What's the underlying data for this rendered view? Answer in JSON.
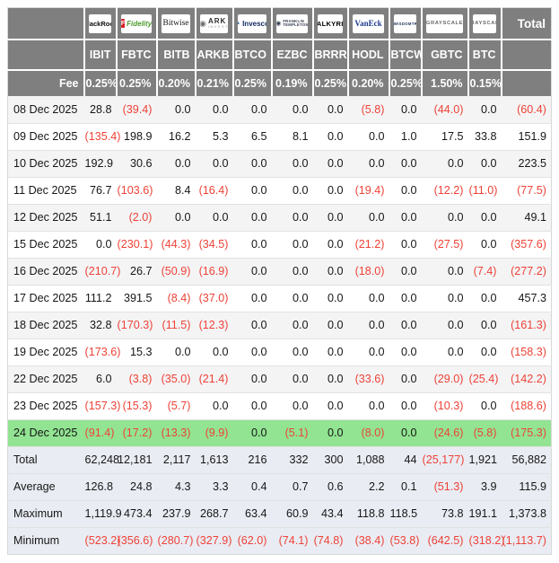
{
  "chart_data": {
    "type": "table",
    "total_label": "Total",
    "fee_label": "Fee",
    "providers": [
      {
        "key": "blackrock",
        "text": "BlackRock"
      },
      {
        "key": "fidelity",
        "text": "Fidelity",
        "icon": "F"
      },
      {
        "key": "bitwise",
        "text": "Bitwise"
      },
      {
        "key": "ark-invest",
        "text": "ARK",
        "subtext": "INVEST",
        "icon": "◉"
      },
      {
        "key": "invesco",
        "text": "Invesco",
        "icon": "▲"
      },
      {
        "key": "franklin-templeton",
        "text": "FRANKLIN",
        "subtext": "TEMPLETON",
        "icon": "◉"
      },
      {
        "key": "valkyrie",
        "text": "VALKYRIE"
      },
      {
        "key": "vaneck",
        "text": "VanEck"
      },
      {
        "key": "wisdomtree",
        "text": "WISDOMTREE",
        "icon": "♠"
      },
      {
        "key": "grayscale",
        "text": "GRAYSCALE"
      },
      {
        "key": "grayscale",
        "text": "GRAYSCALE"
      }
    ],
    "tickers": [
      "IBIT",
      "FBTC",
      "BITB",
      "ARKB",
      "BTCO",
      "EZBC",
      "BRRR",
      "HODL",
      "BTCW",
      "GBTC",
      "BTC"
    ],
    "fees": [
      "0.25%",
      "0.25%",
      "0.20%",
      "0.21%",
      "0.25%",
      "0.19%",
      "0.25%",
      "0.20%",
      "0.25%",
      "1.50%",
      "0.15%"
    ],
    "rows": [
      {
        "date": "08 Dec 2025",
        "values": [
          "28.8",
          "(39.4)",
          "0.0",
          "0.0",
          "0.0",
          "0.0",
          "0.0",
          "(5.8)",
          "0.0",
          "(44.0)",
          "0.0",
          "(60.4)"
        ]
      },
      {
        "date": "09 Dec 2025",
        "values": [
          "(135.4)",
          "198.9",
          "16.2",
          "5.3",
          "6.5",
          "8.1",
          "0.0",
          "0.0",
          "1.0",
          "17.5",
          "33.8",
          "151.9"
        ]
      },
      {
        "date": "10 Dec 2025",
        "values": [
          "192.9",
          "30.6",
          "0.0",
          "0.0",
          "0.0",
          "0.0",
          "0.0",
          "0.0",
          "0.0",
          "0.0",
          "0.0",
          "223.5"
        ]
      },
      {
        "date": "11 Dec 2025",
        "values": [
          "76.7",
          "(103.6)",
          "8.4",
          "(16.4)",
          "0.0",
          "0.0",
          "0.0",
          "(19.4)",
          "0.0",
          "(12.2)",
          "(11.0)",
          "(77.5)"
        ]
      },
      {
        "date": "12 Dec 2025",
        "values": [
          "51.1",
          "(2.0)",
          "0.0",
          "0.0",
          "0.0",
          "0.0",
          "0.0",
          "0.0",
          "0.0",
          "0.0",
          "0.0",
          "49.1"
        ]
      },
      {
        "date": "15 Dec 2025",
        "values": [
          "0.0",
          "(230.1)",
          "(44.3)",
          "(34.5)",
          "0.0",
          "0.0",
          "0.0",
          "(21.2)",
          "0.0",
          "(27.5)",
          "0.0",
          "(357.6)"
        ]
      },
      {
        "date": "16 Dec 2025",
        "values": [
          "(210.7)",
          "26.7",
          "(50.9)",
          "(16.9)",
          "0.0",
          "0.0",
          "0.0",
          "(18.0)",
          "0.0",
          "0.0",
          "(7.4)",
          "(277.2)"
        ]
      },
      {
        "date": "17 Dec 2025",
        "values": [
          "111.2",
          "391.5",
          "(8.4)",
          "(37.0)",
          "0.0",
          "0.0",
          "0.0",
          "0.0",
          "0.0",
          "0.0",
          "0.0",
          "457.3"
        ]
      },
      {
        "date": "18 Dec 2025",
        "values": [
          "32.8",
          "(170.3)",
          "(11.5)",
          "(12.3)",
          "0.0",
          "0.0",
          "0.0",
          "0.0",
          "0.0",
          "0.0",
          "0.0",
          "(161.3)"
        ]
      },
      {
        "date": "19 Dec 2025",
        "values": [
          "(173.6)",
          "15.3",
          "0.0",
          "0.0",
          "0.0",
          "0.0",
          "0.0",
          "0.0",
          "0.0",
          "0.0",
          "0.0",
          "(158.3)"
        ]
      },
      {
        "date": "22 Dec 2025",
        "values": [
          "6.0",
          "(3.8)",
          "(35.0)",
          "(21.4)",
          "0.0",
          "0.0",
          "0.0",
          "(33.6)",
          "0.0",
          "(29.0)",
          "(25.4)",
          "(142.2)"
        ]
      },
      {
        "date": "23 Dec 2025",
        "values": [
          "(157.3)",
          "(15.3)",
          "(5.7)",
          "0.0",
          "0.0",
          "0.0",
          "0.0",
          "0.0",
          "0.0",
          "(10.3)",
          "0.0",
          "(188.6)"
        ]
      },
      {
        "date": "24 Dec 2025",
        "highlight": true,
        "values": [
          "(91.4)",
          "(17.2)",
          "(13.3)",
          "(9.9)",
          "0.0",
          "(5.1)",
          "0.0",
          "(8.0)",
          "0.0",
          "(24.6)",
          "(5.8)",
          "(175.3)"
        ]
      }
    ],
    "summary": [
      {
        "label": "Total",
        "values": [
          "62,248",
          "12,181",
          "2,117",
          "1,613",
          "216",
          "332",
          "300",
          "1,088",
          "44",
          "(25,177)",
          "1,921",
          "56,882"
        ]
      },
      {
        "label": "Average",
        "values": [
          "126.8",
          "24.8",
          "4.3",
          "3.3",
          "0.4",
          "0.7",
          "0.6",
          "2.2",
          "0.1",
          "(51.3)",
          "3.9",
          "115.9"
        ]
      },
      {
        "label": "Maximum",
        "values": [
          "1,119.9",
          "473.4",
          "237.9",
          "268.7",
          "63.4",
          "60.9",
          "43.4",
          "118.8",
          "118.5",
          "73.8",
          "191.1",
          "1,373.8"
        ]
      },
      {
        "label": "Minimum",
        "values": [
          "(523.2)",
          "(356.6)",
          "(280.7)",
          "(327.9)",
          "(62.0)",
          "(74.1)",
          "(74.8)",
          "(38.4)",
          "(53.8)",
          "(642.5)",
          "(318.2)",
          "(1,113.7)"
        ]
      }
    ]
  },
  "colors": {
    "header_bg": "#7f7f7f",
    "negative_red": "#ee4237",
    "highlight_green": "#92e492",
    "summary_bg": "#e9ecf3",
    "alt_row": "#f4f4f5"
  }
}
